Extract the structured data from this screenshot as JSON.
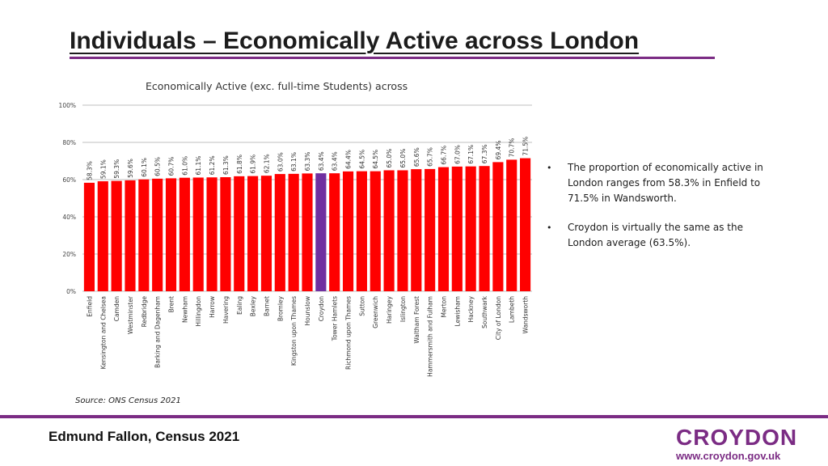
{
  "slide": {
    "title": "Individuals – Economically Active across London",
    "bullets": [
      "The proportion of economically active in London ranges from 58.3% in Enfield to 71.5% in Wandsworth.",
      "Croydon is virtually the same as the London average (63.5%)."
    ],
    "source": "Source: ONS Census 2021",
    "footer_name": "Edmund Fallon, Census 2021",
    "logo_word": "CROYDON",
    "logo_url": "www.croydon.gov.uk"
  },
  "colors": {
    "bar": "#ff0000",
    "highlight": "#7030a0",
    "accent": "#7b2c84",
    "grid": "#bfbfbf"
  },
  "chart_data": {
    "type": "bar",
    "title": "Economically Active (exc. full-time Students) across",
    "xlabel": "",
    "ylabel": "",
    "ylim": [
      0,
      100
    ],
    "yticks": [
      "0%",
      "20%",
      "40%",
      "60%",
      "80%",
      "100%"
    ],
    "grid": true,
    "legend": "none",
    "highlight_category": "Croydon",
    "categories": [
      "Enfield",
      "Kensington and Chelsea",
      "Camden",
      "Westminster",
      "Redbridge",
      "Barking and Dagenham",
      "Brent",
      "Newham",
      "Hillingdon",
      "Harrow",
      "Havering",
      "Ealing",
      "Bexley",
      "Barnet",
      "Bromley",
      "Kingston upon Thames",
      "Hounslow",
      "Croydon",
      "Tower Hamlets",
      "Richmond upon Thames",
      "Sutton",
      "Greenwich",
      "Haringey",
      "Islington",
      "Waltham Forest",
      "Hammersmith and Fulham",
      "Merton",
      "Lewisham",
      "Hackney",
      "Southwark",
      "City of London",
      "Lambeth",
      "Wandsworth"
    ],
    "values": [
      58.3,
      59.1,
      59.3,
      59.6,
      60.1,
      60.5,
      60.7,
      61.0,
      61.1,
      61.2,
      61.3,
      61.8,
      61.9,
      62.1,
      63.0,
      63.1,
      63.3,
      63.4,
      63.4,
      64.4,
      64.5,
      64.5,
      65.0,
      65.0,
      65.6,
      65.7,
      66.7,
      67.0,
      67.1,
      67.3,
      69.4,
      70.7,
      71.5
    ],
    "data_labels": [
      "58.3%",
      "59.1%",
      "59.3%",
      "59.6%",
      "60.1%",
      "60.5%",
      "60.7%",
      "61.0%",
      "61.1%",
      "61.2%",
      "61.3%",
      "61.8%",
      "61.9%",
      "62.1%",
      "63.0%",
      "63.1%",
      "63.3%",
      "63.4%",
      "63.4%",
      "64.4%",
      "64.5%",
      "64.5%",
      "65.0%",
      "65.0%",
      "65.6%",
      "65.7%",
      "66.7%",
      "67.0%",
      "67.1%",
      "67.3%",
      "69.4%",
      "70.7%",
      "71.5%"
    ]
  }
}
